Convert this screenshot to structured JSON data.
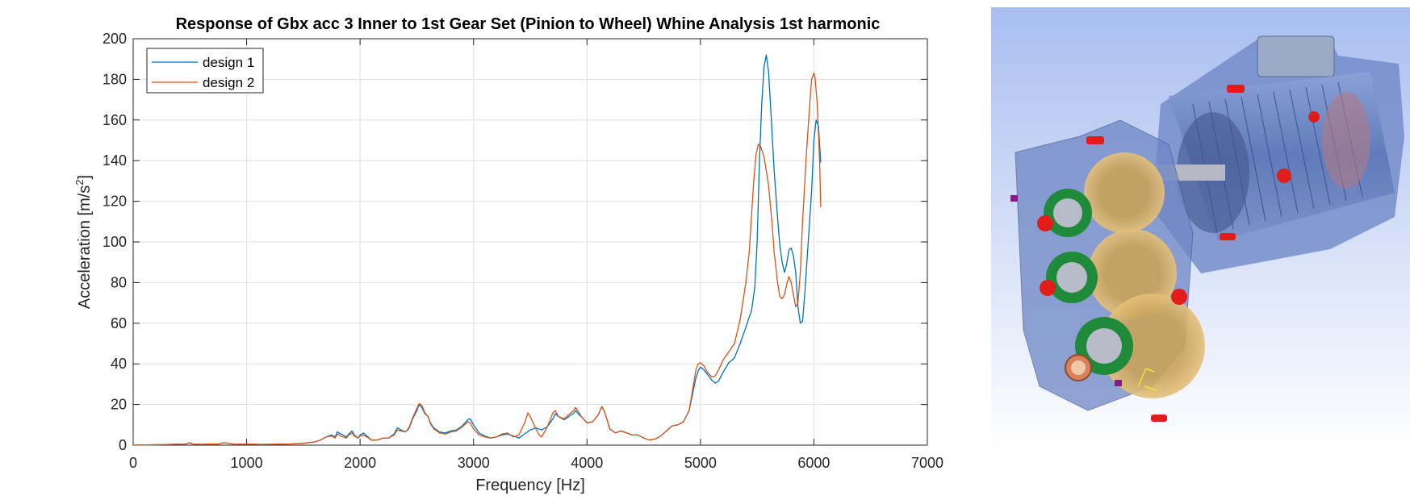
{
  "chart_data": {
    "type": "line",
    "title": "Response of Gbx acc 3 Inner to 1st Gear Set (Pinion to Wheel) Whine Analysis 1st harmonic",
    "xlabel": "Frequency [Hz]",
    "ylabel_main": "Acceleration [m/s",
    "ylabel_sup": "2",
    "ylabel_tail": "]",
    "xlim": [
      0,
      7000
    ],
    "ylim": [
      0,
      200
    ],
    "xticks": [
      0,
      1000,
      2000,
      3000,
      4000,
      5000,
      6000,
      7000
    ],
    "yticks": [
      0,
      20,
      40,
      60,
      80,
      100,
      120,
      140,
      160,
      180,
      200
    ],
    "grid": true,
    "legend_position": "top-left",
    "series": [
      {
        "name": "design 1",
        "color": "#0072bd",
        "points": [
          [
            0,
            0
          ],
          [
            100,
            0.1
          ],
          [
            200,
            0.2
          ],
          [
            300,
            0.3
          ],
          [
            400,
            0.5
          ],
          [
            450,
            0.4
          ],
          [
            500,
            1.2
          ],
          [
            520,
            0.6
          ],
          [
            600,
            0.4
          ],
          [
            700,
            0.6
          ],
          [
            750,
            0.5
          ],
          [
            800,
            1.2
          ],
          [
            850,
            0.8
          ],
          [
            900,
            0.4
          ],
          [
            1000,
            0.6
          ],
          [
            1100,
            0.4
          ],
          [
            1200,
            0.4
          ],
          [
            1300,
            0.5
          ],
          [
            1400,
            0.6
          ],
          [
            1500,
            0.9
          ],
          [
            1600,
            1.6
          ],
          [
            1650,
            2.5
          ],
          [
            1700,
            4
          ],
          [
            1750,
            5
          ],
          [
            1780,
            4
          ],
          [
            1800,
            6.5
          ],
          [
            1830,
            5.5
          ],
          [
            1850,
            5
          ],
          [
            1880,
            4
          ],
          [
            1900,
            5.5
          ],
          [
            1930,
            7
          ],
          [
            1950,
            5
          ],
          [
            1980,
            3.5
          ],
          [
            2000,
            5
          ],
          [
            2030,
            6
          ],
          [
            2060,
            4.5
          ],
          [
            2100,
            2.5
          ],
          [
            2150,
            2.5
          ],
          [
            2200,
            3.5
          ],
          [
            2250,
            3.5
          ],
          [
            2300,
            5.5
          ],
          [
            2330,
            8.5
          ],
          [
            2360,
            7.5
          ],
          [
            2400,
            6.5
          ],
          [
            2430,
            8
          ],
          [
            2460,
            12.5
          ],
          [
            2500,
            17
          ],
          [
            2520,
            20
          ],
          [
            2545,
            18.5
          ],
          [
            2570,
            15.5
          ],
          [
            2600,
            14
          ],
          [
            2620,
            11
          ],
          [
            2650,
            8.5
          ],
          [
            2700,
            6.5
          ],
          [
            2750,
            6
          ],
          [
            2800,
            7
          ],
          [
            2850,
            7.5
          ],
          [
            2900,
            9.5
          ],
          [
            2950,
            12.5
          ],
          [
            2970,
            13
          ],
          [
            3000,
            10
          ],
          [
            3050,
            6
          ],
          [
            3100,
            4.5
          ],
          [
            3150,
            3.5
          ],
          [
            3200,
            4
          ],
          [
            3250,
            5
          ],
          [
            3300,
            5.5
          ],
          [
            3350,
            4.5
          ],
          [
            3400,
            3.5
          ],
          [
            3450,
            5.5
          ],
          [
            3500,
            7.5
          ],
          [
            3550,
            8.5
          ],
          [
            3600,
            7.5
          ],
          [
            3650,
            9
          ],
          [
            3700,
            13
          ],
          [
            3720,
            15.5
          ],
          [
            3750,
            14
          ],
          [
            3800,
            12.5
          ],
          [
            3850,
            14.5
          ],
          [
            3880,
            15.5
          ],
          [
            3900,
            17
          ],
          [
            3930,
            15
          ],
          [
            3950,
            14
          ],
          [
            4000,
            11
          ],
          [
            4050,
            11.5
          ],
          [
            4100,
            15
          ],
          [
            4130,
            19
          ],
          [
            4150,
            17
          ],
          [
            4180,
            12
          ],
          [
            4200,
            8
          ],
          [
            4250,
            6
          ],
          [
            4300,
            7
          ],
          [
            4350,
            6
          ],
          [
            4400,
            5
          ],
          [
            4450,
            5
          ],
          [
            4500,
            3.5
          ],
          [
            4550,
            2.5
          ],
          [
            4600,
            3
          ],
          [
            4650,
            4.5
          ],
          [
            4700,
            7
          ],
          [
            4750,
            9.5
          ],
          [
            4800,
            10
          ],
          [
            4850,
            11.5
          ],
          [
            4900,
            17
          ],
          [
            4930,
            25
          ],
          [
            4960,
            33
          ],
          [
            4980,
            36.5
          ],
          [
            5000,
            38.5
          ],
          [
            5030,
            37
          ],
          [
            5060,
            35
          ],
          [
            5100,
            32
          ],
          [
            5130,
            30.5
          ],
          [
            5160,
            31.5
          ],
          [
            5200,
            36
          ],
          [
            5250,
            40.5
          ],
          [
            5300,
            43
          ],
          [
            5350,
            50
          ],
          [
            5400,
            58
          ],
          [
            5430,
            63
          ],
          [
            5450,
            66
          ],
          [
            5480,
            78
          ],
          [
            5500,
            100
          ],
          [
            5520,
            140
          ],
          [
            5540,
            168
          ],
          [
            5560,
            186
          ],
          [
            5580,
            192
          ],
          [
            5600,
            184
          ],
          [
            5620,
            165
          ],
          [
            5650,
            135
          ],
          [
            5680,
            112
          ],
          [
            5700,
            98
          ],
          [
            5720,
            90
          ],
          [
            5740,
            85
          ],
          [
            5760,
            89
          ],
          [
            5780,
            96
          ],
          [
            5800,
            97
          ],
          [
            5820,
            93
          ],
          [
            5840,
            85
          ],
          [
            5860,
            68
          ],
          [
            5880,
            60
          ],
          [
            5900,
            61
          ],
          [
            5920,
            75
          ],
          [
            5950,
            100
          ],
          [
            5980,
            125
          ],
          [
            6000,
            150
          ],
          [
            6020,
            160
          ],
          [
            6040,
            157
          ],
          [
            6050,
            148
          ],
          [
            6060,
            139
          ]
        ]
      },
      {
        "name": "design 2",
        "color": "#d95319",
        "points": [
          [
            0,
            0
          ],
          [
            100,
            0.1
          ],
          [
            200,
            0.2
          ],
          [
            300,
            0.3
          ],
          [
            400,
            0.5
          ],
          [
            450,
            0.4
          ],
          [
            500,
            1.2
          ],
          [
            520,
            0.6
          ],
          [
            600,
            0.4
          ],
          [
            700,
            0.6
          ],
          [
            750,
            0.5
          ],
          [
            800,
            1.2
          ],
          [
            850,
            0.8
          ],
          [
            900,
            0.4
          ],
          [
            1000,
            0.6
          ],
          [
            1100,
            0.4
          ],
          [
            1200,
            0.4
          ],
          [
            1300,
            0.5
          ],
          [
            1400,
            0.6
          ],
          [
            1500,
            0.9
          ],
          [
            1600,
            1.6
          ],
          [
            1650,
            2.5
          ],
          [
            1700,
            4
          ],
          [
            1750,
            4.5
          ],
          [
            1780,
            3.5
          ],
          [
            1800,
            5.5
          ],
          [
            1830,
            4.5
          ],
          [
            1850,
            4
          ],
          [
            1880,
            3.5
          ],
          [
            1900,
            5
          ],
          [
            1930,
            6
          ],
          [
            1950,
            4.5
          ],
          [
            1980,
            3.5
          ],
          [
            2000,
            4.5
          ],
          [
            2030,
            5
          ],
          [
            2060,
            4
          ],
          [
            2100,
            2.5
          ],
          [
            2150,
            2.5
          ],
          [
            2200,
            3.5
          ],
          [
            2250,
            3.5
          ],
          [
            2300,
            5
          ],
          [
            2330,
            7.5
          ],
          [
            2360,
            7
          ],
          [
            2400,
            6.5
          ],
          [
            2430,
            8.5
          ],
          [
            2460,
            13
          ],
          [
            2500,
            18
          ],
          [
            2520,
            20.5
          ],
          [
            2545,
            19.5
          ],
          [
            2570,
            16
          ],
          [
            2600,
            14
          ],
          [
            2620,
            10.5
          ],
          [
            2650,
            8
          ],
          [
            2700,
            6
          ],
          [
            2750,
            5.5
          ],
          [
            2800,
            6.5
          ],
          [
            2850,
            7
          ],
          [
            2900,
            9
          ],
          [
            2950,
            11.5
          ],
          [
            2970,
            11
          ],
          [
            3000,
            8
          ],
          [
            3050,
            5
          ],
          [
            3100,
            4
          ],
          [
            3150,
            3.5
          ],
          [
            3200,
            4
          ],
          [
            3250,
            5.5
          ],
          [
            3300,
            6
          ],
          [
            3350,
            4
          ],
          [
            3400,
            5
          ],
          [
            3450,
            11
          ],
          [
            3480,
            16
          ],
          [
            3500,
            14
          ],
          [
            3550,
            8
          ],
          [
            3580,
            5
          ],
          [
            3600,
            4
          ],
          [
            3650,
            9
          ],
          [
            3700,
            16
          ],
          [
            3720,
            17
          ],
          [
            3750,
            14
          ],
          [
            3800,
            13
          ],
          [
            3850,
            15.5
          ],
          [
            3880,
            17
          ],
          [
            3900,
            18.5
          ],
          [
            3930,
            16
          ],
          [
            3950,
            14
          ],
          [
            4000,
            11
          ],
          [
            4050,
            11.5
          ],
          [
            4100,
            15
          ],
          [
            4130,
            19
          ],
          [
            4150,
            17
          ],
          [
            4180,
            12
          ],
          [
            4200,
            8
          ],
          [
            4250,
            6
          ],
          [
            4300,
            7
          ],
          [
            4350,
            6
          ],
          [
            4400,
            5
          ],
          [
            4450,
            5
          ],
          [
            4500,
            3.5
          ],
          [
            4550,
            2.5
          ],
          [
            4600,
            3
          ],
          [
            4650,
            4.5
          ],
          [
            4700,
            7
          ],
          [
            4750,
            9.5
          ],
          [
            4800,
            10
          ],
          [
            4850,
            11.5
          ],
          [
            4900,
            17
          ],
          [
            4930,
            27
          ],
          [
            4960,
            37
          ],
          [
            4980,
            40
          ],
          [
            5000,
            40.5
          ],
          [
            5030,
            39
          ],
          [
            5060,
            36
          ],
          [
            5100,
            33.5
          ],
          [
            5130,
            34
          ],
          [
            5160,
            37
          ],
          [
            5200,
            42
          ],
          [
            5250,
            46
          ],
          [
            5300,
            50
          ],
          [
            5350,
            62
          ],
          [
            5400,
            80
          ],
          [
            5430,
            95
          ],
          [
            5450,
            113
          ],
          [
            5470,
            130
          ],
          [
            5490,
            143
          ],
          [
            5510,
            148
          ],
          [
            5530,
            147
          ],
          [
            5560,
            142
          ],
          [
            5600,
            128
          ],
          [
            5630,
            110
          ],
          [
            5650,
            95
          ],
          [
            5680,
            80
          ],
          [
            5700,
            73
          ],
          [
            5720,
            72
          ],
          [
            5740,
            74
          ],
          [
            5760,
            79
          ],
          [
            5780,
            83
          ],
          [
            5800,
            80
          ],
          [
            5820,
            74
          ],
          [
            5840,
            68
          ],
          [
            5860,
            70
          ],
          [
            5880,
            85
          ],
          [
            5900,
            110
          ],
          [
            5930,
            140
          ],
          [
            5960,
            165
          ],
          [
            5980,
            180
          ],
          [
            6000,
            183
          ],
          [
            6010,
            181
          ],
          [
            6030,
            168
          ],
          [
            6050,
            140
          ],
          [
            6060,
            117
          ]
        ]
      }
    ]
  },
  "render": {
    "name": "3d-gearbox-render"
  }
}
